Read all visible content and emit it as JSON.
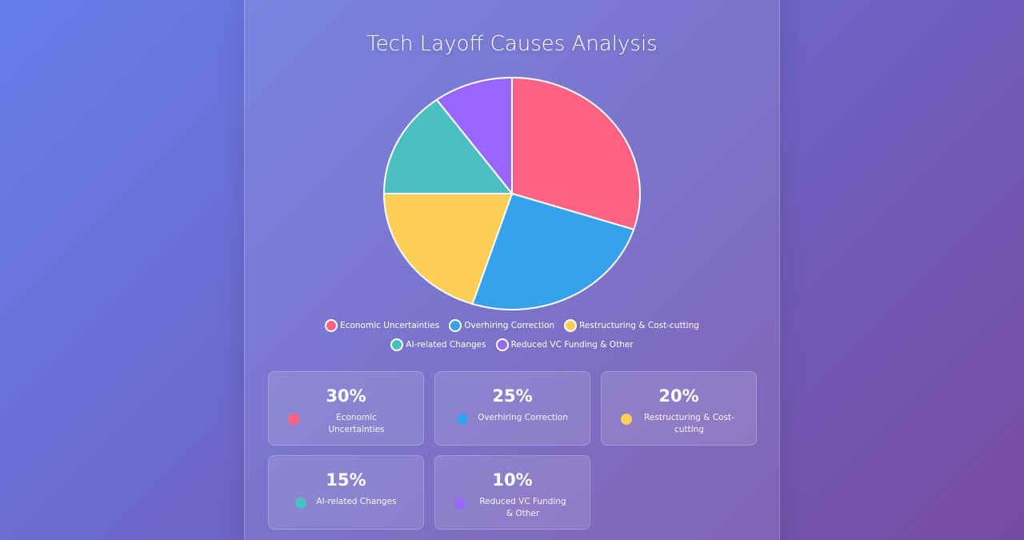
{
  "chart_data": {
    "type": "pie",
    "title": "Tech Layoff Causes Analysis",
    "categories": [
      "Economic Uncertainties",
      "Overhiring Correction",
      "Restructuring & Cost-cutting",
      "AI-related Changes",
      "Reduced VC Funding & Other"
    ],
    "values": [
      30,
      25,
      20,
      15,
      10
    ],
    "value_labels": [
      "30%",
      "25%",
      "20%",
      "15%",
      "10%"
    ],
    "colors": [
      "#ff6384",
      "#36a2eb",
      "#ffce56",
      "#4bc0c0",
      "#9966ff"
    ]
  }
}
